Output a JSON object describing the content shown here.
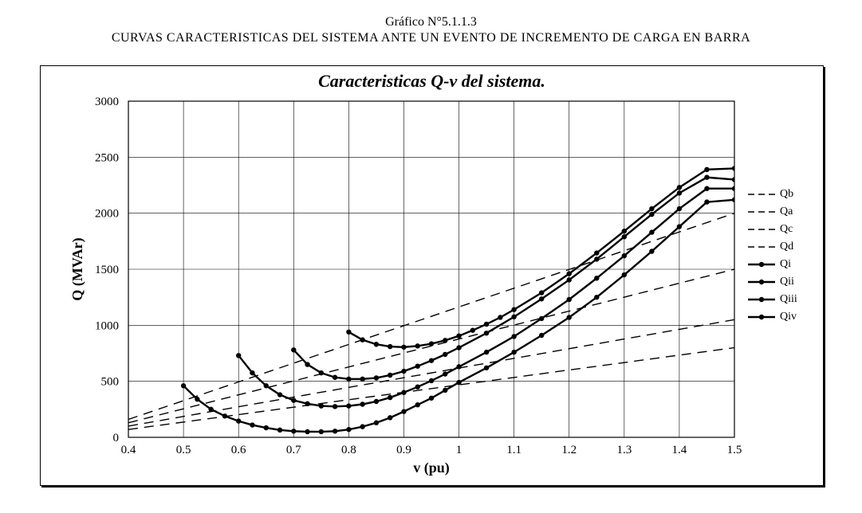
{
  "caption": {
    "line1": "Gráfico N°5.1.1.3",
    "line2": "CURVAS CARACTERISTICAS DEL SISTEMA ANTE UN EVENTO DE INCREMENTO DE CARGA EN BARRA"
  },
  "chart": {
    "type": "line",
    "title": "Caracteristicas Q-v del sistema.",
    "xlabel": "v (pu)",
    "ylabel": "Q (MVAr)",
    "title_fontsize": 22,
    "title_fontstyle": "italic bold",
    "label_fontsize": 18,
    "tick_fontsize": 15,
    "background_color": "#ffffff",
    "frame_color": "#000000",
    "grid_color": "#000000",
    "grid_linewidth": 0.6,
    "xlim": [
      0.4,
      1.5
    ],
    "ylim": [
      0,
      3000
    ],
    "xticks": [
      0.4,
      0.5,
      0.6,
      0.7,
      0.8,
      0.9,
      1.0,
      1.1,
      1.2,
      1.3,
      1.4,
      1.5
    ],
    "xtick_labels": [
      "0.4",
      "0.5",
      "0.6",
      "0.7",
      "0.8",
      "0.9",
      "1",
      "1.1",
      "1.2",
      "1.3",
      "1.4",
      "1.5"
    ],
    "yticks": [
      0,
      500,
      1000,
      1500,
      2000,
      2500,
      3000
    ],
    "ytick_labels": [
      "0",
      "500",
      "1000",
      "1500",
      "2000",
      "2500",
      "3000"
    ],
    "legend": {
      "position": "right",
      "items": [
        {
          "key": "Qb",
          "label": "Qb",
          "style": "dashed",
          "marker": "none"
        },
        {
          "key": "Qa",
          "label": "Qa",
          "style": "dashed",
          "marker": "none"
        },
        {
          "key": "Qc",
          "label": "Qc",
          "style": "dashed",
          "marker": "none"
        },
        {
          "key": "Qd",
          "label": "Qd",
          "style": "dashed",
          "marker": "none"
        },
        {
          "key": "Qi",
          "label": "Qi",
          "style": "solid",
          "marker": "circle"
        },
        {
          "key": "Qii",
          "label": "Qii",
          "style": "solid",
          "marker": "circle"
        },
        {
          "key": "Qiii",
          "label": "Qiii",
          "style": "solid",
          "marker": "circle"
        },
        {
          "key": "Qiv",
          "label": "Qiv",
          "style": "solid",
          "marker": "circle"
        }
      ]
    },
    "series_color": "#000000",
    "dashed_linewidth": 1.4,
    "solid_linewidth": 2.4,
    "marker_radius": 3.2,
    "dashed_series": {
      "Qb": {
        "p1": [
          0.4,
          160
        ],
        "p2": [
          1.5,
          2000
        ]
      },
      "Qa": {
        "p1": [
          0.4,
          130
        ],
        "p2": [
          1.5,
          1500
        ]
      },
      "Qc": {
        "p1": [
          0.4,
          100
        ],
        "p2": [
          1.5,
          1050
        ]
      },
      "Qd": {
        "p1": [
          0.4,
          70
        ],
        "p2": [
          1.5,
          800
        ]
      }
    },
    "marker_series": {
      "Qi": [
        [
          0.5,
          460
        ],
        [
          0.525,
          340
        ],
        [
          0.55,
          250
        ],
        [
          0.575,
          190
        ],
        [
          0.6,
          145
        ],
        [
          0.625,
          110
        ],
        [
          0.65,
          85
        ],
        [
          0.675,
          65
        ],
        [
          0.7,
          55
        ],
        [
          0.725,
          50
        ],
        [
          0.75,
          50
        ],
        [
          0.775,
          55
        ],
        [
          0.8,
          70
        ],
        [
          0.825,
          95
        ],
        [
          0.85,
          130
        ],
        [
          0.875,
          175
        ],
        [
          0.9,
          230
        ],
        [
          0.925,
          290
        ],
        [
          0.95,
          350
        ],
        [
          0.975,
          420
        ],
        [
          1.0,
          490
        ],
        [
          1.05,
          620
        ],
        [
          1.1,
          760
        ],
        [
          1.15,
          910
        ],
        [
          1.2,
          1070
        ],
        [
          1.25,
          1250
        ],
        [
          1.3,
          1450
        ],
        [
          1.35,
          1660
        ],
        [
          1.4,
          1880
        ],
        [
          1.45,
          2100
        ],
        [
          1.5,
          2120
        ]
      ],
      "Qii": [
        [
          0.6,
          730
        ],
        [
          0.625,
          575
        ],
        [
          0.65,
          460
        ],
        [
          0.675,
          380
        ],
        [
          0.7,
          330
        ],
        [
          0.725,
          300
        ],
        [
          0.75,
          280
        ],
        [
          0.775,
          275
        ],
        [
          0.8,
          280
        ],
        [
          0.825,
          295
        ],
        [
          0.85,
          320
        ],
        [
          0.875,
          355
        ],
        [
          0.9,
          400
        ],
        [
          0.925,
          450
        ],
        [
          0.95,
          505
        ],
        [
          0.975,
          565
        ],
        [
          1.0,
          630
        ],
        [
          1.05,
          760
        ],
        [
          1.1,
          900
        ],
        [
          1.15,
          1060
        ],
        [
          1.2,
          1230
        ],
        [
          1.25,
          1420
        ],
        [
          1.3,
          1620
        ],
        [
          1.35,
          1830
        ],
        [
          1.4,
          2040
        ],
        [
          1.45,
          2220
        ],
        [
          1.5,
          2220
        ]
      ],
      "Qiii": [
        [
          0.7,
          780
        ],
        [
          0.725,
          650
        ],
        [
          0.75,
          575
        ],
        [
          0.775,
          535
        ],
        [
          0.8,
          520
        ],
        [
          0.825,
          520
        ],
        [
          0.85,
          530
        ],
        [
          0.875,
          555
        ],
        [
          0.9,
          590
        ],
        [
          0.925,
          635
        ],
        [
          0.95,
          685
        ],
        [
          0.975,
          740
        ],
        [
          1.0,
          800
        ],
        [
          1.05,
          930
        ],
        [
          1.1,
          1075
        ],
        [
          1.15,
          1235
        ],
        [
          1.2,
          1405
        ],
        [
          1.25,
          1590
        ],
        [
          1.3,
          1790
        ],
        [
          1.35,
          1990
        ],
        [
          1.4,
          2180
        ],
        [
          1.45,
          2320
        ],
        [
          1.5,
          2300
        ]
      ],
      "Qiv": [
        [
          0.8,
          940
        ],
        [
          0.825,
          870
        ],
        [
          0.85,
          830
        ],
        [
          0.875,
          810
        ],
        [
          0.9,
          805
        ],
        [
          0.925,
          815
        ],
        [
          0.95,
          835
        ],
        [
          0.975,
          865
        ],
        [
          1.0,
          905
        ],
        [
          1.025,
          955
        ],
        [
          1.05,
          1010
        ],
        [
          1.075,
          1070
        ],
        [
          1.1,
          1140
        ],
        [
          1.15,
          1290
        ],
        [
          1.2,
          1460
        ],
        [
          1.25,
          1645
        ],
        [
          1.3,
          1840
        ],
        [
          1.35,
          2040
        ],
        [
          1.4,
          2230
        ],
        [
          1.45,
          2390
        ],
        [
          1.5,
          2400
        ]
      ]
    }
  }
}
